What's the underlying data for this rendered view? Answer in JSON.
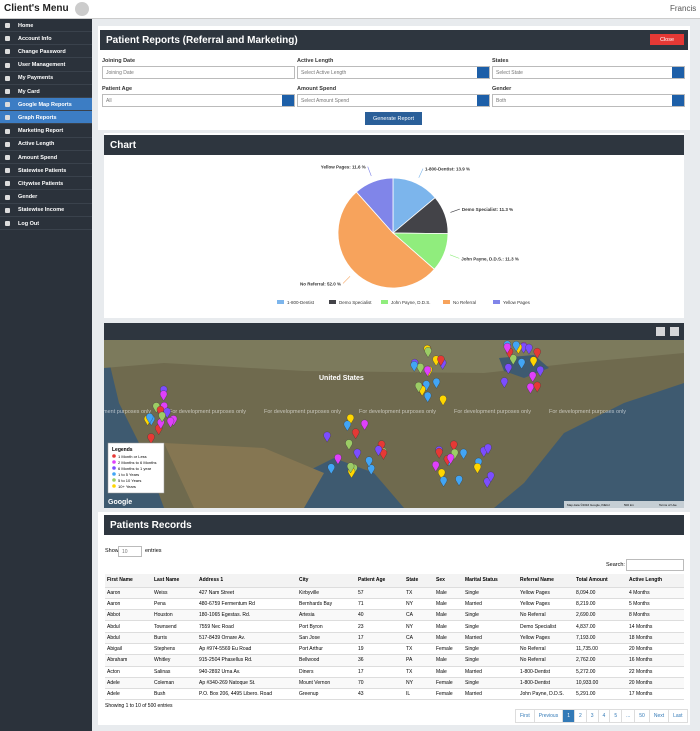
{
  "header": {
    "title": "Client's Menu",
    "user": "Francis"
  },
  "sidebar": {
    "items": [
      {
        "label": "Home"
      },
      {
        "label": "Account Info"
      },
      {
        "label": "Change Password"
      },
      {
        "label": "User Management"
      },
      {
        "label": "My Payments"
      },
      {
        "label": "My Card"
      },
      {
        "label": "Google Map Reports",
        "active": true
      },
      {
        "label": "Graph Reports",
        "active": true
      },
      {
        "label": "Marketing Report"
      },
      {
        "label": "Active Length"
      },
      {
        "label": "Amount Spend"
      },
      {
        "label": "Statewise Patients"
      },
      {
        "label": "Citywise Patients"
      },
      {
        "label": "Gender"
      },
      {
        "label": "Statewise Income"
      },
      {
        "label": "Log Out"
      }
    ]
  },
  "report": {
    "title": "Patient Reports (Referral and Marketing)",
    "close": "Close",
    "fields": [
      {
        "label": "Joining Date",
        "placeholder": "Joining Date"
      },
      {
        "label": "Active Length",
        "placeholder": "Select Active Length"
      },
      {
        "label": "States",
        "placeholder": "Select State"
      },
      {
        "label": "Patient Age",
        "placeholder": "All"
      },
      {
        "label": "Amount Spend",
        "placeholder": "Select Amount Spend"
      },
      {
        "label": "Gender",
        "placeholder": "Both"
      }
    ],
    "button": "Generate Report"
  },
  "chart_panel": {
    "title": "Chart"
  },
  "chart_data": {
    "type": "pie",
    "categories": [
      "1-800-Dentist",
      "Demo Specialist",
      "John Payne, D.D.S.",
      "No Referral",
      "Yellow Pages"
    ],
    "values": [
      13.9,
      11.3,
      11.3,
      52.0,
      11.6
    ],
    "value_labels": [
      "13.9 %",
      "11.3 %",
      "11.3 %",
      "52.0 %",
      "11.6 %"
    ],
    "colors": [
      "#7cb5ec",
      "#434348",
      "#90ed7d",
      "#f7a35c",
      "#8085e9"
    ]
  },
  "map": {
    "place": "United States",
    "watermark": "For development purposes only",
    "legend_title": "Legends",
    "legend": [
      {
        "label": "1 Month or Less",
        "color": "#e53935"
      },
      {
        "label": "2 Months to 6 Months",
        "color": "#e040fb"
      },
      {
        "label": "6 Months to 1 year",
        "color": "#7c4dff"
      },
      {
        "label": "1 to 5 Years",
        "color": "#42a5f5"
      },
      {
        "label": "5 to 10 Years",
        "color": "#9ccc65"
      },
      {
        "label": "10+ Years",
        "color": "#ffd600"
      }
    ],
    "logo": "Google",
    "attribution": "Map data ©2016 Google, INEGI",
    "scale": "500 km",
    "terms": "Terms of Use"
  },
  "records": {
    "title": "Patients Records",
    "show": "Show",
    "length": "10",
    "entries": "entries",
    "search": "Search:",
    "columns": [
      "First Name",
      "Last Name",
      "Address 1",
      "City",
      "Patient Age",
      "State",
      "Sex",
      "Marital Status",
      "Referral Name",
      "Total Amount",
      "Active Length"
    ],
    "rows": [
      [
        "Aaron",
        "Weiss",
        "427 Nam Street",
        "Kirbyville",
        "57",
        "TX",
        "Male",
        "Single",
        "Yellow Pages",
        "8,094.00",
        "4 Months"
      ],
      [
        "Aaron",
        "Pena",
        "480-6759 Fermentum Rd",
        "Bernhards Bay",
        "71",
        "NY",
        "Male",
        "Married",
        "Yellow Pages",
        "8,219.00",
        "5 Months"
      ],
      [
        "Abbot",
        "Houston",
        "180-1065 Egestas. Rd.",
        "Artesia",
        "40",
        "CA",
        "Male",
        "Single",
        "No Referral",
        "2,690.00",
        "8 Months"
      ],
      [
        "Abdul",
        "Townsend",
        "7559 Nec Road",
        "Port Byron",
        "23",
        "NY",
        "Male",
        "Single",
        "Demo Specialist",
        "4,837.00",
        "14 Months"
      ],
      [
        "Abdul",
        "Burris",
        "517-8439 Ornare Av.",
        "San Jose",
        "17",
        "CA",
        "Male",
        "Married",
        "Yellow Pages",
        "7,193.00",
        "18 Months"
      ],
      [
        "Abigail",
        "Stephens",
        "Ap #974-5569 Eu Road",
        "Port Arthur",
        "19",
        "TX",
        "Female",
        "Single",
        "No Referral",
        "11,735.00",
        "20 Months"
      ],
      [
        "Abraham",
        "Whitley",
        "915-2504 Phasellus Rd.",
        "Bellwood",
        "36",
        "PA",
        "Male",
        "Single",
        "No Referral",
        "2,762.00",
        "16 Months"
      ],
      [
        "Acton",
        "Salinas",
        "940-2892 Urna Av.",
        "Diners",
        "17",
        "TX",
        "Male",
        "Married",
        "1-800-Dentist",
        "5,272.00",
        "22 Months"
      ],
      [
        "Adele",
        "Coleman",
        "Ap #340-269 Natoque St.",
        "Mount Vernon",
        "70",
        "NY",
        "Female",
        "Single",
        "1-800-Dentist",
        "10,933.00",
        "20 Months"
      ],
      [
        "Adele",
        "Bush",
        "P.O. Box 206, 4495 Libero. Road",
        "Greenup",
        "43",
        "IL",
        "Female",
        "Married",
        "John Payne, D.D.S.",
        "5,291.00",
        "17 Months"
      ]
    ],
    "info": "Showing 1 to 10 of 500 entries",
    "pagination": [
      {
        "label": "First"
      },
      {
        "label": "Previous"
      },
      {
        "label": "1",
        "active": true
      },
      {
        "label": "2"
      },
      {
        "label": "3"
      },
      {
        "label": "4"
      },
      {
        "label": "5"
      },
      {
        "label": "..."
      },
      {
        "label": "50"
      },
      {
        "label": "Next"
      },
      {
        "label": "Last"
      }
    ]
  }
}
